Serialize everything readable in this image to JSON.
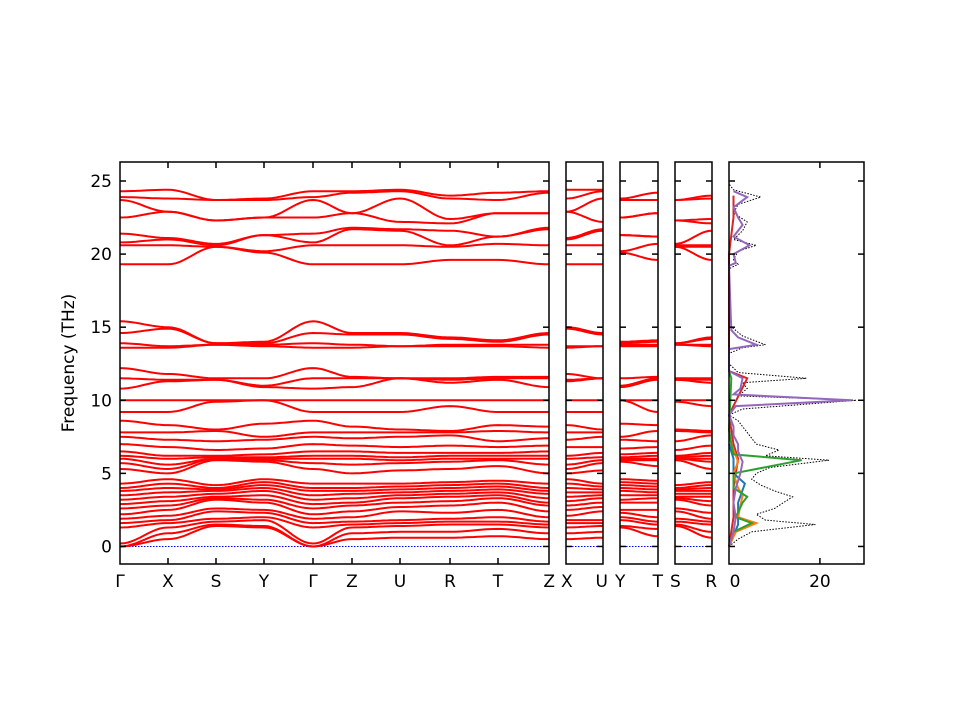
{
  "chart_data": {
    "type": "line",
    "ylabel": "Frequency (THz)",
    "ylim": [
      -1.2,
      26.3
    ],
    "yticks": [
      0,
      5,
      10,
      15,
      20,
      25
    ],
    "grid": false,
    "band_color": "#ff0000",
    "zero_line_color": "#0000ff",
    "panels": [
      {
        "path": [
          "Γ",
          "X",
          "S",
          "Y",
          "Γ",
          "Z",
          "U",
          "R",
          "T",
          "Z"
        ]
      },
      {
        "path": [
          "X",
          "U"
        ]
      },
      {
        "path": [
          "Y",
          "T"
        ]
      },
      {
        "path": [
          "S",
          "R"
        ]
      }
    ],
    "band_frequencies": {
      "Γ": [
        0,
        0,
        0.2,
        1.3,
        1.6,
        1.9,
        2.2,
        2.6,
        2.9,
        3.2,
        3.5,
        3.8,
        4.0,
        4.3,
        5.3,
        5.7,
        6.0,
        6.2,
        6.5,
        7.0,
        7.5,
        7.8,
        8.6,
        9.2,
        10.0,
        10.8,
        11.5,
        12.2,
        13.6,
        13.9,
        14.6,
        15.4,
        19.3,
        20.6,
        20.8,
        21.4,
        22.5,
        23.7,
        23.9,
        24.3
      ],
      "X": [
        0.5,
        0.9,
        1.3,
        1.6,
        1.8,
        2.1,
        2.5,
        2.8,
        3.1,
        3.4,
        3.7,
        4.0,
        4.3,
        4.6,
        5.0,
        5.3,
        5.6,
        6.0,
        6.2,
        6.8,
        7.3,
        7.8,
        8.3,
        9.2,
        10.0,
        11.3,
        11.4,
        11.8,
        13.6,
        13.7,
        14.9,
        15.0,
        19.3,
        20.6,
        21.0,
        21.1,
        22.9,
        22.9,
        23.8,
        24.4
      ],
      "S": [
        1.4,
        1.5,
        1.7,
        1.9,
        2.4,
        2.6,
        3.2,
        3.3,
        3.4,
        3.6,
        3.8,
        3.9,
        4.0,
        4.2,
        5.9,
        6.0,
        6.0,
        6.1,
        6.2,
        6.6,
        7.2,
        7.9,
        8.0,
        9.9,
        10.0,
        11.4,
        11.4,
        11.5,
        13.8,
        13.8,
        13.9,
        13.9,
        20.5,
        20.5,
        20.6,
        20.7,
        22.3,
        22.3,
        23.7,
        23.7
      ],
      "Y": [
        1.3,
        1.4,
        1.8,
        2.0,
        2.3,
        2.5,
        3.0,
        3.2,
        3.5,
        3.8,
        4.0,
        4.2,
        4.4,
        4.6,
        5.8,
        5.9,
        6.0,
        6.1,
        6.3,
        6.7,
        7.3,
        7.5,
        8.4,
        10.0,
        10.0,
        10.9,
        11.0,
        11.5,
        13.7,
        13.8,
        13.9,
        14.0,
        20.1,
        20.2,
        21.3,
        21.3,
        22.5,
        22.5,
        23.7,
        23.8
      ],
      "Z": [
        0.5,
        0.9,
        1.3,
        1.5,
        1.7,
        2.0,
        2.4,
        2.8,
        3.0,
        3.3,
        3.6,
        3.8,
        4.0,
        4.3,
        5.0,
        5.6,
        6.0,
        6.2,
        6.5,
        6.9,
        7.4,
        7.8,
        8.2,
        9.2,
        10.0,
        10.9,
        11.5,
        11.6,
        13.6,
        13.8,
        14.5,
        14.6,
        19.3,
        20.6,
        21.7,
        21.8,
        22.8,
        22.8,
        24.2,
        24.3
      ],
      "U": [
        0.6,
        1.0,
        1.4,
        1.6,
        1.8,
        2.4,
        2.7,
        3.0,
        3.3,
        3.5,
        3.7,
        3.9,
        4.1,
        4.3,
        5.2,
        5.7,
        5.9,
        6.1,
        6.4,
        6.8,
        7.5,
        7.8,
        8.0,
        9.2,
        10.0,
        11.5,
        11.5,
        11.5,
        13.7,
        13.7,
        14.5,
        14.6,
        19.3,
        20.6,
        21.6,
        21.7,
        22.2,
        23.8,
        24.3,
        24.4
      ],
      "R": [
        0.6,
        1.0,
        1.5,
        1.7,
        1.9,
        2.3,
        2.8,
        3.1,
        3.4,
        3.6,
        3.8,
        4.0,
        4.2,
        4.4,
        5.3,
        5.8,
        6.0,
        6.2,
        6.4,
        6.9,
        7.6,
        7.8,
        7.9,
        9.6,
        10.0,
        11.2,
        11.4,
        11.5,
        13.7,
        13.8,
        14.2,
        14.3,
        19.6,
        20.5,
        20.6,
        21.6,
        22.1,
        22.4,
        23.8,
        24.0
      ],
      "T": [
        0.7,
        1.2,
        1.5,
        1.7,
        2.0,
        2.5,
        3.0,
        3.3,
        3.5,
        3.7,
        3.9,
        4.1,
        4.3,
        4.5,
        5.5,
        5.9,
        6.0,
        6.2,
        6.4,
        6.8,
        7.2,
        7.9,
        8.3,
        9.2,
        10.0,
        11.4,
        11.5,
        11.6,
        13.7,
        13.8,
        14.0,
        14.1,
        19.6,
        20.7,
        21.2,
        21.2,
        22.8,
        22.8,
        23.7,
        24.2
      ]
    },
    "dos": {
      "xlim": [
        0,
        29.7
      ],
      "xticks": [
        0,
        20
      ],
      "series": [
        {
          "color": "#000000",
          "style": "dotted",
          "points": [
            [
              0,
              0
            ],
            [
              0.5,
              2
            ],
            [
              1,
              5
            ],
            [
              1.5,
              19
            ],
            [
              1.8,
              8
            ],
            [
              2.2,
              6
            ],
            [
              2.6,
              10
            ],
            [
              3,
              12
            ],
            [
              3.4,
              14
            ],
            [
              3.8,
              10
            ],
            [
              4.2,
              7
            ],
            [
              4.6,
              5
            ],
            [
              5,
              6
            ],
            [
              5.4,
              9
            ],
            [
              5.9,
              22
            ],
            [
              6.2,
              8
            ],
            [
              6.6,
              11
            ],
            [
              7,
              6
            ],
            [
              7.4,
              5
            ],
            [
              7.8,
              4
            ],
            [
              8.2,
              3
            ],
            [
              8.6,
              2
            ],
            [
              9,
              0
            ],
            [
              9.4,
              3
            ],
            [
              10,
              28
            ],
            [
              10.3,
              2
            ],
            [
              10.8,
              4
            ],
            [
              11.2,
              3
            ],
            [
              11.5,
              17
            ],
            [
              11.9,
              2
            ],
            [
              12.5,
              0
            ],
            [
              13.2,
              0
            ],
            [
              13.6,
              3
            ],
            [
              13.8,
              8
            ],
            [
              14.4,
              3
            ],
            [
              14.9,
              1
            ],
            [
              15.2,
              0
            ],
            [
              19,
              0
            ],
            [
              19.3,
              2
            ],
            [
              19.6,
              1
            ],
            [
              20.2,
              2
            ],
            [
              20.6,
              6
            ],
            [
              21,
              1
            ],
            [
              21.6,
              3
            ],
            [
              22.2,
              4
            ],
            [
              22.8,
              1
            ],
            [
              23.4,
              2
            ],
            [
              23.9,
              7
            ],
            [
              24.4,
              1
            ],
            [
              24.8,
              0
            ]
          ]
        },
        {
          "color": "#d62728",
          "style": "solid",
          "points": [
            [
              0,
              0
            ],
            [
              2,
              1
            ],
            [
              4,
              1
            ],
            [
              6,
              2
            ],
            [
              7,
              1
            ],
            [
              9,
              0
            ],
            [
              11.5,
              4
            ],
            [
              12,
              0
            ],
            [
              20,
              0
            ],
            [
              22.5,
              1
            ],
            [
              24,
              1
            ]
          ]
        },
        {
          "color": "#1f77b4",
          "style": "solid",
          "points": [
            [
              0,
              0
            ],
            [
              1.5,
              2
            ],
            [
              3,
              2
            ],
            [
              4.3,
              3.5
            ],
            [
              5,
              1
            ],
            [
              6,
              1
            ],
            [
              7,
              0
            ]
          ]
        },
        {
          "color": "#ff7f0e",
          "style": "solid",
          "points": [
            [
              0,
              0
            ],
            [
              1,
              1.5
            ],
            [
              1.6,
              6
            ],
            [
              2,
              2
            ],
            [
              2.8,
              2.5
            ],
            [
              3.5,
              3
            ],
            [
              4,
              2
            ],
            [
              5,
              1
            ],
            [
              5.8,
              2
            ],
            [
              7,
              0.5
            ],
            [
              8,
              0
            ]
          ]
        },
        {
          "color": "#2ca02c",
          "style": "solid",
          "points": [
            [
              0,
              0
            ],
            [
              1,
              1
            ],
            [
              1.6,
              5
            ],
            [
              2,
              1.5
            ],
            [
              3,
              3
            ],
            [
              3.4,
              4
            ],
            [
              4,
              1
            ],
            [
              5,
              1
            ],
            [
              5.9,
              16
            ],
            [
              6.3,
              1
            ],
            [
              7,
              0.5
            ],
            [
              8,
              0
            ],
            [
              11.5,
              0.5
            ],
            [
              12,
              0
            ]
          ]
        },
        {
          "color": "#9467bd",
          "style": "solid",
          "points": [
            [
              0,
              0
            ],
            [
              1,
              1
            ],
            [
              2,
              1.5
            ],
            [
              3,
              1
            ],
            [
              4,
              1.5
            ],
            [
              5,
              2.5
            ],
            [
              5.8,
              3
            ],
            [
              6.5,
              2
            ],
            [
              7,
              2
            ],
            [
              7.6,
              1
            ],
            [
              8.2,
              1
            ],
            [
              9,
              0
            ],
            [
              9.6,
              1.5
            ],
            [
              10,
              27
            ],
            [
              10.4,
              1
            ],
            [
              10.8,
              2.5
            ],
            [
              11.5,
              3
            ],
            [
              12,
              0
            ],
            [
              13.5,
              0
            ],
            [
              13.8,
              6
            ],
            [
              14.3,
              2
            ],
            [
              14.8,
              0.5
            ],
            [
              19.2,
              0
            ],
            [
              19.4,
              1.5
            ],
            [
              20,
              1
            ],
            [
              20.6,
              4.5
            ],
            [
              21.2,
              1
            ],
            [
              22,
              3
            ],
            [
              22.5,
              2
            ],
            [
              23.2,
              1
            ],
            [
              23.9,
              4
            ],
            [
              24.3,
              1
            ]
          ]
        }
      ]
    }
  }
}
